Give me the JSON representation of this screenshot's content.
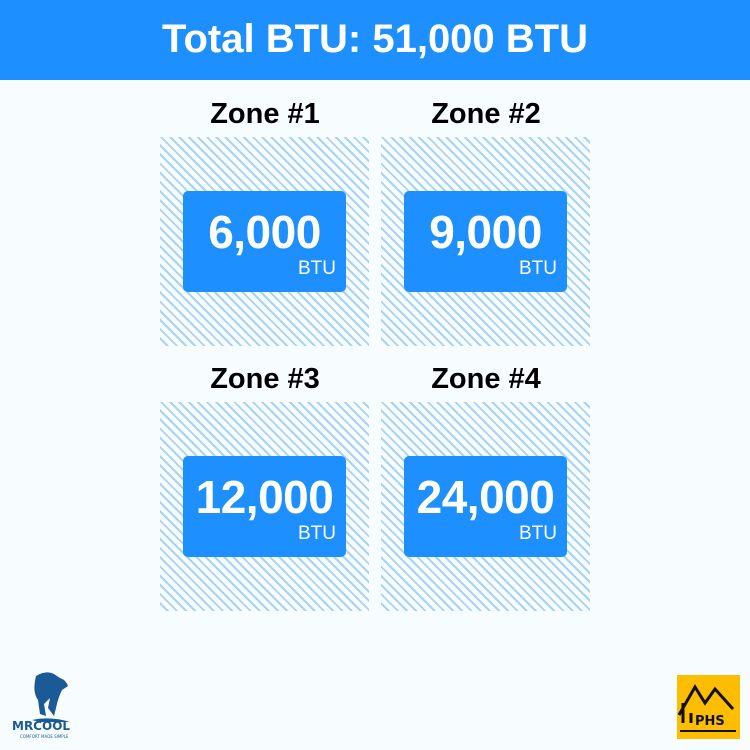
{
  "header": {
    "title": "Total BTU: 51,000 BTU"
  },
  "zones": [
    {
      "title": "Zone #1",
      "value": "6,000",
      "unit": "BTU"
    },
    {
      "title": "Zone #2",
      "value": "9,000",
      "unit": "BTU"
    },
    {
      "title": "Zone #3",
      "value": "12,000",
      "unit": "BTU"
    },
    {
      "title": "Zone #4",
      "value": "24,000",
      "unit": "BTU"
    }
  ],
  "logos": {
    "mrcool": "MRCOOL",
    "mrcool_tagline": "COMFORT MADE SIMPLE",
    "phs": "PHS"
  },
  "colors": {
    "accent": "#1e8fff",
    "hatch": "#a8d3f7",
    "background": "#f7fcff",
    "phs_yellow": "#fdbd00"
  }
}
